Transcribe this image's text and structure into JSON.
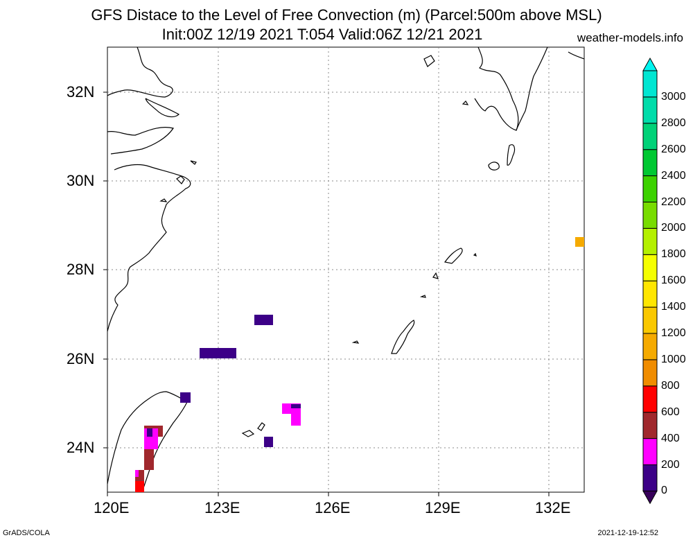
{
  "title": "GFS Distace to the Level of Free Convection (m) (Parcel:500m above MSL)",
  "subtitle": "Init:00Z 12/19 2021 T:054 Valid:06Z 12/21 2021",
  "site": "weather-models.info",
  "footer_left": "GrADS/COLA",
  "footer_right": "2021-12-19-12:52",
  "map": {
    "lat_ticks": [
      "32N",
      "30N",
      "28N",
      "26N",
      "24N"
    ],
    "lon_ticks": [
      "120E",
      "123E",
      "126E",
      "129E",
      "132E"
    ],
    "grid": "dotted"
  },
  "colorbar": {
    "labels": [
      "0",
      "200",
      "400",
      "600",
      "800",
      "1000",
      "1200",
      "1400",
      "1600",
      "1800",
      "2000",
      "2200",
      "2400",
      "2600",
      "2800",
      "3000"
    ],
    "colors": [
      "#3c0087",
      "#ff00ff",
      "#a0282d",
      "#ff0000",
      "#f08c00",
      "#f5aa00",
      "#fac800",
      "#ffe600",
      "#f5ff00",
      "#b4f000",
      "#78dc00",
      "#3cd200",
      "#00c832",
      "#00d278",
      "#00dcaa",
      "#00e6d2"
    ],
    "top_color": "#00f5f0",
    "bottom_color": "#37005a"
  }
}
